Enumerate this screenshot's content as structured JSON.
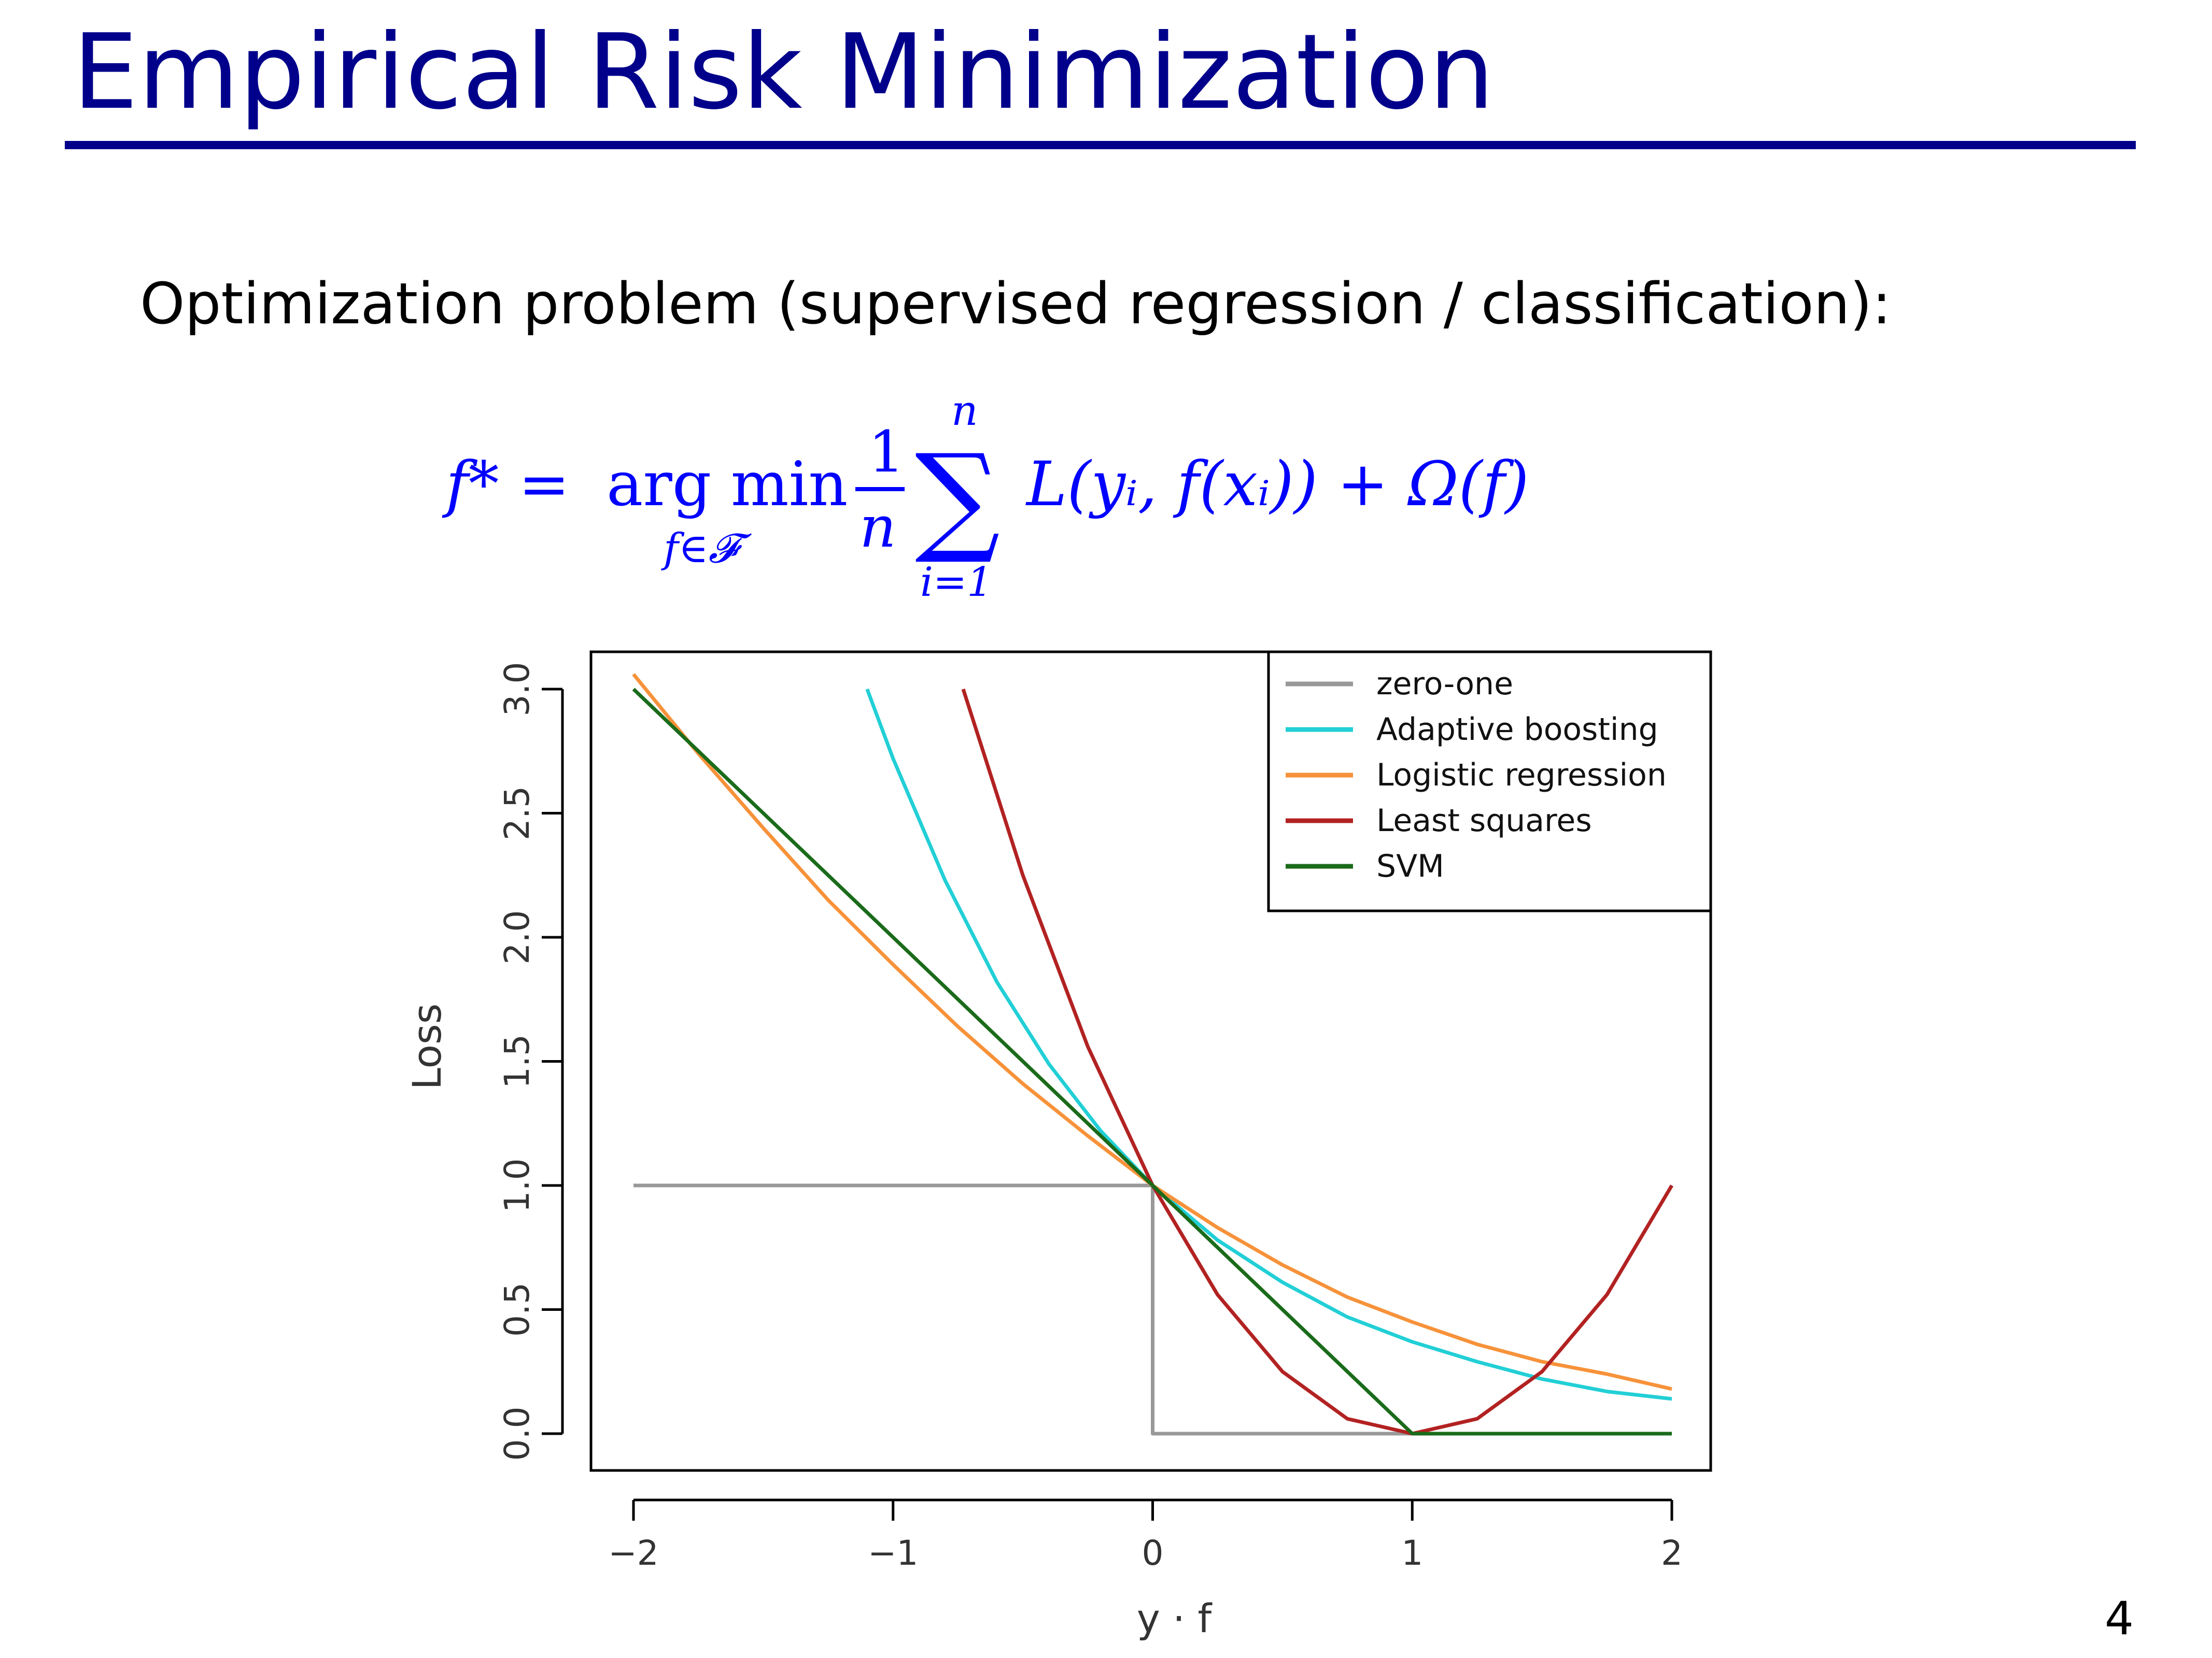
{
  "slide": {
    "title": "Empirical Risk Minimization",
    "intro": "Optimization problem (supervised regression / classification):",
    "page_number": "4"
  },
  "formula": {
    "lhs": "f* = ",
    "argmin": "arg min",
    "argmin_sub": "f∈𝓕",
    "frac_num": "1",
    "frac_den": "n",
    "sum_top": "n",
    "sum_bottom": "i=1",
    "sum_symbol": "∑",
    "body": "L(yᵢ, f(xᵢ)) + Ω(f)",
    "color": "#0000ff"
  },
  "chart_data": {
    "type": "line",
    "xlabel": "y · f",
    "ylabel": "Loss",
    "xlim": [
      -2,
      2
    ],
    "ylim": [
      0,
      3
    ],
    "x_ticks": [
      "−2",
      "−1",
      "0",
      "1",
      "2"
    ],
    "y_ticks": [
      "0.0",
      "0.5",
      "1.0",
      "1.5",
      "2.0",
      "2.5",
      "3.0"
    ],
    "grid": false,
    "legend_position": "top-right",
    "series": [
      {
        "name": "zero-one",
        "color": "#999999",
        "x": [
          -2,
          0,
          0,
          2
        ],
        "y": [
          1,
          1,
          0,
          0
        ]
      },
      {
        "name": "Adaptive boosting",
        "color": "#22cfd6",
        "x": [
          -1.1,
          -1.0,
          -0.8,
          -0.6,
          -0.4,
          -0.2,
          0,
          0.25,
          0.5,
          0.75,
          1.0,
          1.25,
          1.5,
          1.75,
          2.0
        ],
        "y": [
          3.0,
          2.72,
          2.23,
          1.82,
          1.49,
          1.22,
          1.0,
          0.78,
          0.61,
          0.47,
          0.37,
          0.29,
          0.22,
          0.17,
          0.14
        ]
      },
      {
        "name": "Logistic regression",
        "color": "#f7923a",
        "x": [
          -2.0,
          -1.75,
          -1.5,
          -1.25,
          -1.0,
          -0.75,
          -0.5,
          -0.25,
          0,
          0.25,
          0.5,
          0.75,
          1.0,
          1.25,
          1.5,
          1.75,
          2.0
        ],
        "y": [
          3.06,
          2.74,
          2.44,
          2.15,
          1.89,
          1.64,
          1.41,
          1.2,
          1.0,
          0.83,
          0.68,
          0.55,
          0.45,
          0.36,
          0.29,
          0.24,
          0.18
        ]
      },
      {
        "name": "Least squares",
        "color": "#b22222",
        "x": [
          -0.73,
          -0.5,
          -0.25,
          0,
          0.25,
          0.5,
          0.75,
          1.0,
          1.25,
          1.5,
          1.75,
          2.0
        ],
        "y": [
          3.0,
          2.25,
          1.56,
          1.0,
          0.56,
          0.25,
          0.06,
          0.0,
          0.06,
          0.25,
          0.56,
          1.0
        ]
      },
      {
        "name": "SVM",
        "color": "#1a6b1a",
        "x": [
          -2,
          1,
          2
        ],
        "y": [
          3,
          0,
          0
        ]
      }
    ]
  }
}
